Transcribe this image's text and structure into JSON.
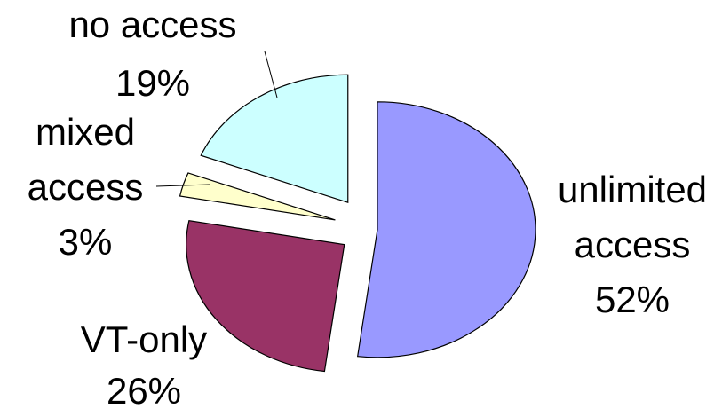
{
  "chart_data": {
    "type": "pie",
    "title": "",
    "unit": "%",
    "grid": false,
    "legend": "none",
    "slices": [
      {
        "name": "unlimited access",
        "label_lines": [
          "unlimited",
          "access"
        ],
        "value": 52,
        "value_label": "52%",
        "color": "#9999ff"
      },
      {
        "name": "VT-only",
        "label_lines": [
          "VT-only"
        ],
        "value": 26,
        "value_label": "26%",
        "color": "#993366"
      },
      {
        "name": "mixed access",
        "label_lines": [
          "mixed",
          "access"
        ],
        "value": 3,
        "value_label": "3%",
        "color": "#ffffcc"
      },
      {
        "name": "no access",
        "label_lines": [
          "no access"
        ],
        "value": 19,
        "value_label": "19%",
        "color": "#ccffff"
      }
    ]
  }
}
